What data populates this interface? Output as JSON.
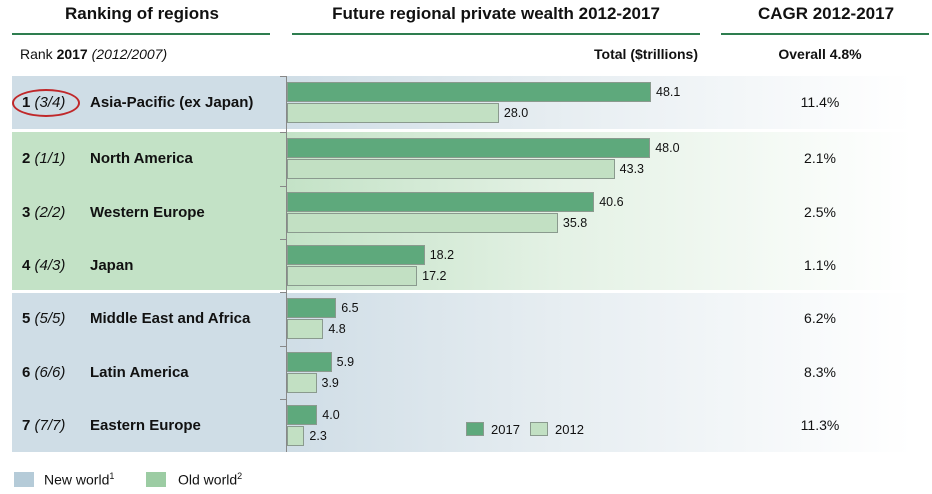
{
  "headers": {
    "ranking": "Ranking of regions",
    "wealth": "Future regional private wealth 2012-2017",
    "cagr": "CAGR 2012-2017"
  },
  "subheaders": {
    "rank_prefix": "Rank ",
    "rank_bold": "2017",
    "rank_italic": "(2012/2007)",
    "total": "Total ($trillions)",
    "overall": "Overall 4.8%"
  },
  "colors": {
    "bar_2017": "#5ea97c",
    "bar_2012": "#c2e0c3",
    "new_world": "#b5cbd8",
    "old_world": "#9ccca3",
    "rule": "#2e7d4f",
    "highlight": "#c0282a"
  },
  "footer_legend": [
    {
      "label": "New world",
      "sup": "1",
      "group": "new"
    },
    {
      "label": "Old world",
      "sup": "2",
      "group": "old"
    }
  ],
  "chart_data": {
    "type": "bar",
    "orientation": "horizontal",
    "title": "Future regional private wealth 2012-2017",
    "xlabel": "Total ($trillions)",
    "xlim": [
      0,
      50
    ],
    "grid": false,
    "legend_position": "bottom-right",
    "categories": [
      "Asia-Pacific (ex Japan)",
      "North America",
      "Western Europe",
      "Japan",
      "Middle East and Africa",
      "Latin America",
      "Eastern Europe"
    ],
    "ranks": [
      {
        "rank": "1",
        "previous": "(3/4)",
        "group": "new",
        "highlighted": true
      },
      {
        "rank": "2",
        "previous": "(1/1)",
        "group": "old",
        "highlighted": false
      },
      {
        "rank": "3",
        "previous": "(2/2)",
        "group": "old",
        "highlighted": false
      },
      {
        "rank": "4",
        "previous": "(4/3)",
        "group": "old",
        "highlighted": false
      },
      {
        "rank": "5",
        "previous": "(5/5)",
        "group": "new",
        "highlighted": false
      },
      {
        "rank": "6",
        "previous": "(6/6)",
        "group": "new",
        "highlighted": false
      },
      {
        "rank": "7",
        "previous": "(7/7)",
        "group": "new",
        "highlighted": false
      }
    ],
    "series": [
      {
        "name": "2017",
        "values": [
          48.1,
          48.0,
          40.6,
          18.2,
          6.5,
          5.9,
          4.0
        ],
        "labels": [
          "48.1",
          "48.0",
          "40.6",
          "18.2",
          "6.5",
          "5.9",
          "4.0"
        ]
      },
      {
        "name": "2012",
        "values": [
          28.0,
          43.3,
          35.8,
          17.2,
          4.8,
          3.9,
          2.3
        ],
        "labels": [
          "28.0",
          "43.3",
          "35.8",
          "17.2",
          "4.8",
          "3.9",
          "2.3"
        ]
      }
    ],
    "cagr": [
      "11.4%",
      "2.1%",
      "2.5%",
      "1.1%",
      "6.2%",
      "8.3%",
      "11.3%"
    ],
    "cagr_overall": "4.8%"
  }
}
